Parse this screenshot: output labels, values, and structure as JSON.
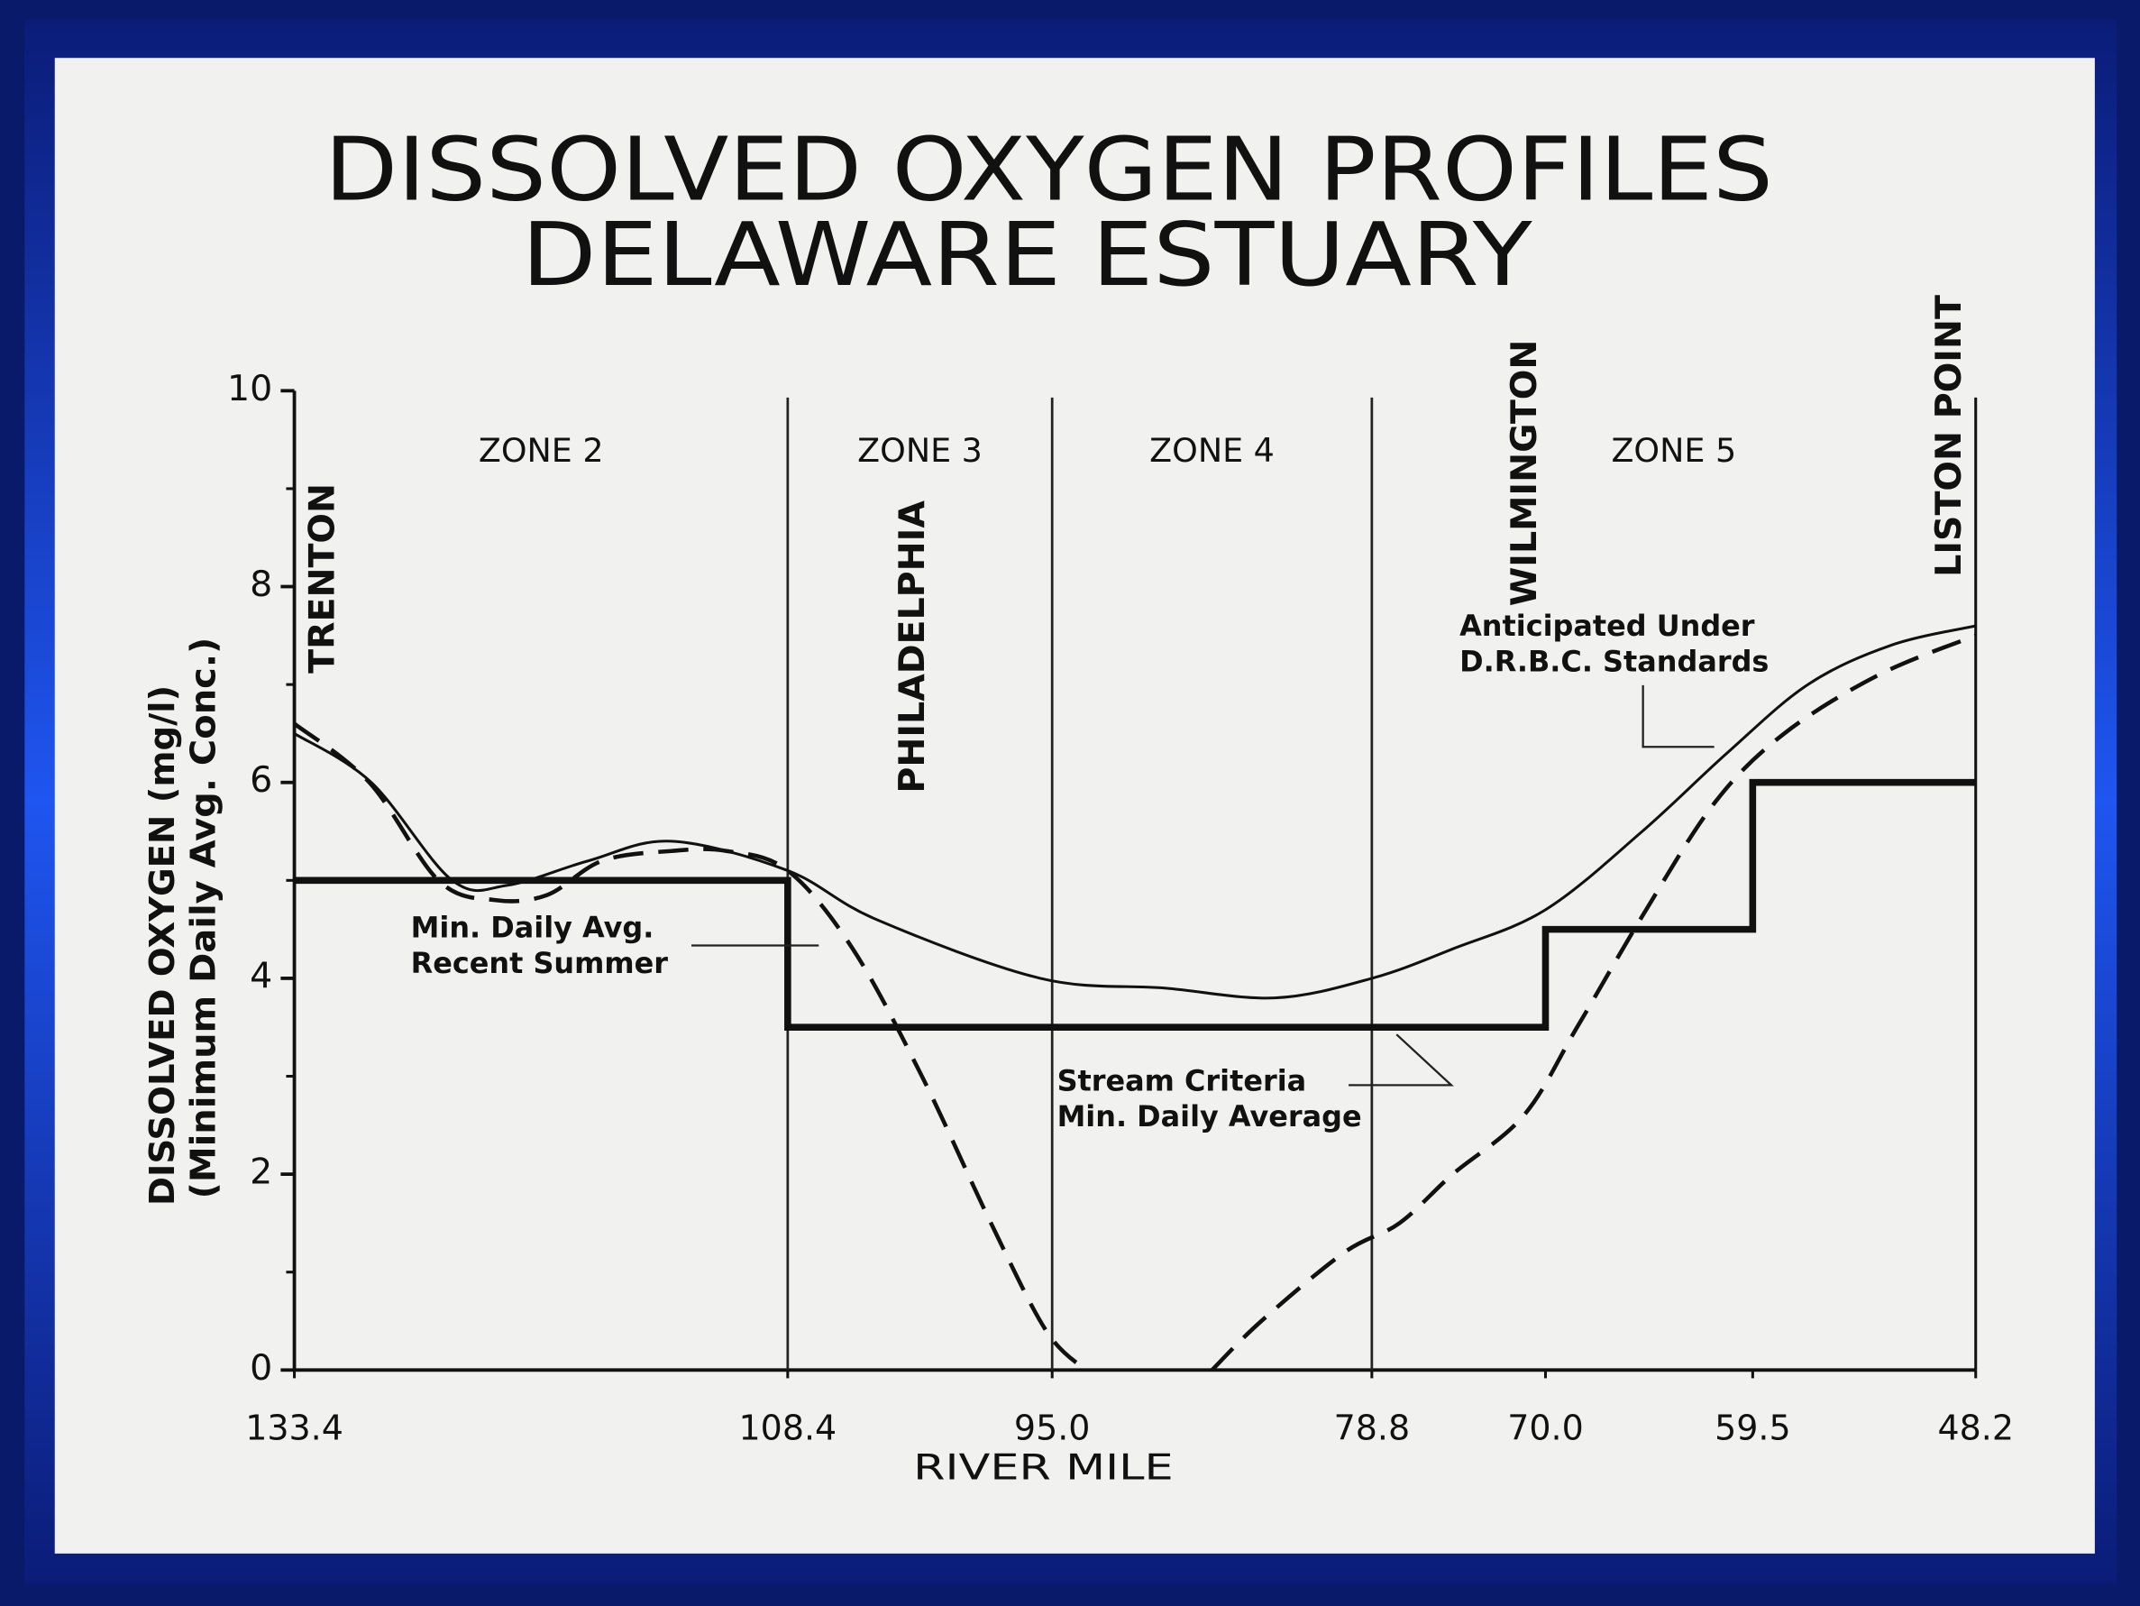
{
  "chart_data": {
    "type": "line",
    "title": [
      "DISSOLVED OXYGEN PROFILES",
      "DELAWARE ESTUARY"
    ],
    "xlabel": "RIVER MILE",
    "ylabel": [
      "DISSOLVED OXYGEN (mg/l)",
      "(Minimum Daily Avg. Conc.)"
    ],
    "xlim": [
      133.4,
      48.2
    ],
    "xticks": [
      133.4,
      108.4,
      {
        "value": 95,
        "label": "95.0"
      },
      78.8,
      {
        "value": 70,
        "label": "70.0"
      },
      59.5,
      48.2
    ],
    "ylim": [
      0,
      10
    ],
    "yticks": [
      0,
      2,
      4,
      6,
      8,
      10
    ],
    "yminorticks": [
      1,
      3,
      5,
      7,
      9
    ],
    "zones": [
      {
        "label": "ZONE 2",
        "from": 133.4,
        "to": 108.4
      },
      {
        "label": "ZONE 3",
        "from": 108.4,
        "to": 95
      },
      {
        "label": "ZONE 4",
        "from": 95,
        "to": 78.8
      },
      {
        "label": "ZONE 5",
        "from": 78.8,
        "to": 48.2
      }
    ],
    "places": [
      "TRENTON",
      "PHILADELPHIA",
      "WILMINGTON",
      "LISTON POINT"
    ],
    "series": [
      {
        "name": "Anticipated Under D.R.B.C. Standards",
        "color": "#111111",
        "style": "solid",
        "width": 2,
        "x": [
          133.4,
          129.5,
          125.4,
          122.6,
          118.5,
          114.3,
          108.4,
          103.9,
          95.6,
          89.3,
          83.7,
          78.8,
          74.7,
          70,
          65.1,
          60.8,
          56.7,
          52.5,
          48.2
        ],
        "values": [
          6.5,
          6.0,
          5.0,
          4.95,
          5.2,
          5.4,
          5.1,
          4.6,
          4.0,
          3.9,
          3.8,
          4.0,
          4.3,
          4.7,
          5.5,
          6.3,
          7.0,
          7.4,
          7.6
        ]
      },
      {
        "name": "Min. Daily Avg. Recent Summer",
        "color": "#111111",
        "style": "dashed",
        "width": 3,
        "x": [
          133.4,
          129.6,
          126.1,
          123.3,
          120.6,
          117.8,
          114.3,
          111.5,
          108.4,
          105.1,
          101.6,
          98.1,
          95.3,
          93.3,
          90,
          86.9,
          84.4,
          80.2,
          77.4,
          74.7,
          71.1,
          68.4,
          64.9,
          61.4,
          57.9,
          53.1,
          48.2
        ],
        "values": [
          6.6,
          6.0,
          5.0,
          4.8,
          4.85,
          5.2,
          5.3,
          5.3,
          5.1,
          4.3,
          3.0,
          1.5,
          0.4,
          0,
          null,
          0,
          0.5,
          1.2,
          1.5,
          2.0,
          2.6,
          3.5,
          4.7,
          5.8,
          6.5,
          7.1,
          7.5
        ]
      },
      {
        "name": "Stream Criteria Min. Daily Average",
        "color": "#111111",
        "style": "step",
        "width": 5,
        "x": [
          133.4,
          108.4,
          108.4,
          70,
          70,
          59.5,
          59.5,
          48.2
        ],
        "values": [
          5,
          5,
          3.5,
          3.5,
          4.5,
          4.5,
          6,
          6
        ]
      }
    ]
  }
}
